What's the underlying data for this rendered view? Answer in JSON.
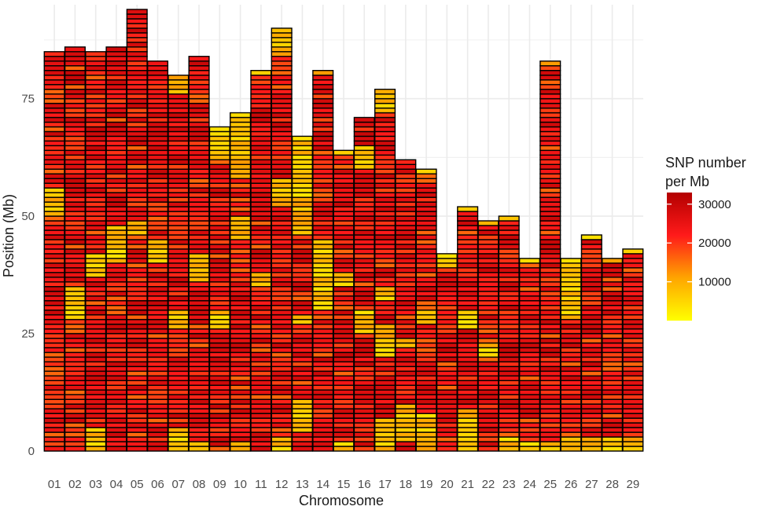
{
  "chart_data": {
    "type": "heatmap",
    "title": "",
    "xlabel": "Chromosome",
    "ylabel": "Position (Mb)",
    "ylim": [
      0,
      95
    ],
    "y_ticks": [
      0,
      25,
      50,
      75
    ],
    "grid": true,
    "bin_size_mb": 1,
    "categories": [
      "01",
      "02",
      "03",
      "04",
      "05",
      "06",
      "07",
      "08",
      "09",
      "10",
      "11",
      "12",
      "13",
      "14",
      "15",
      "16",
      "17",
      "18",
      "19",
      "20",
      "21",
      "22",
      "23",
      "24",
      "25",
      "26",
      "27",
      "28",
      "29"
    ],
    "chromosome_length_mb": [
      85,
      86,
      85,
      86,
      94,
      83,
      80,
      84,
      69,
      72,
      81,
      90,
      67,
      81,
      64,
      71,
      77,
      62,
      60,
      42,
      52,
      49,
      50,
      41,
      83,
      41,
      46,
      41,
      43
    ],
    "low_density_regions_mb": {
      "01": [
        [
          50,
          56
        ]
      ],
      "02": [
        [
          28,
          35
        ]
      ],
      "03": [
        [
          0,
          5
        ],
        [
          37,
          42
        ]
      ],
      "04": [
        [
          40,
          48
        ]
      ],
      "05": [
        [
          46,
          49
        ]
      ],
      "06": [
        [
          40,
          45
        ]
      ],
      "07": [
        [
          0,
          5
        ],
        [
          26,
          30
        ],
        [
          76,
          80
        ]
      ],
      "08": [
        [
          0,
          2
        ],
        [
          36,
          42
        ]
      ],
      "09": [
        [
          26,
          30
        ],
        [
          62,
          69
        ]
      ],
      "10": [
        [
          0,
          2
        ],
        [
          45,
          50
        ],
        [
          58,
          72
        ]
      ],
      "11": [
        [
          35,
          38
        ],
        [
          80,
          81
        ]
      ],
      "12": [
        [
          0,
          3
        ],
        [
          52,
          58
        ],
        [
          84,
          90
        ]
      ],
      "13": [
        [
          4,
          11
        ],
        [
          27,
          29
        ],
        [
          46,
          67
        ]
      ],
      "14": [
        [
          30,
          45
        ],
        [
          80,
          81
        ]
      ],
      "15": [
        [
          0,
          2
        ],
        [
          35,
          38
        ],
        [
          63,
          64
        ]
      ],
      "16": [
        [
          25,
          30
        ],
        [
          60,
          65
        ]
      ],
      "17": [
        [
          0,
          7
        ],
        [
          20,
          27
        ],
        [
          32,
          35
        ],
        [
          72,
          77
        ]
      ],
      "18": [
        [
          2,
          10
        ],
        [
          22,
          24
        ]
      ],
      "19": [
        [
          0,
          8
        ],
        [
          27,
          30
        ],
        [
          59,
          60
        ]
      ],
      "20": [
        [
          39,
          42
        ]
      ],
      "21": [
        [
          0,
          9
        ],
        [
          26,
          30
        ],
        [
          51,
          52
        ]
      ],
      "22": [
        [
          20,
          23
        ],
        [
          48,
          49
        ]
      ],
      "23": [
        [
          0,
          3
        ],
        [
          49,
          50
        ]
      ],
      "24": [
        [
          0,
          2
        ],
        [
          40,
          41
        ]
      ],
      "25": [
        [
          0,
          2
        ],
        [
          82,
          83
        ]
      ],
      "26": [
        [
          0,
          3
        ],
        [
          28,
          41
        ]
      ],
      "27": [
        [
          0,
          3
        ],
        [
          45,
          46
        ]
      ],
      "28": [
        [
          0,
          3
        ],
        [
          40,
          41
        ]
      ],
      "29": [
        [
          0,
          3
        ],
        [
          42,
          43
        ]
      ]
    },
    "typical_snp_per_mb": 24000,
    "low_density_snp_per_mb": 3000,
    "legend": {
      "title_lines": [
        "SNP number",
        "per Mb"
      ],
      "ticks": [
        10000,
        20000,
        30000
      ],
      "tick_labels": [
        "10000",
        "20000",
        "30000"
      ],
      "range": [
        0,
        33000
      ],
      "colors": [
        "#ffff00",
        "#ffa500",
        "#ff1a1a",
        "#b30000"
      ],
      "placement": "right"
    },
    "cell_border_color": "#000000",
    "panel_grid_color": "#ebebeb"
  }
}
